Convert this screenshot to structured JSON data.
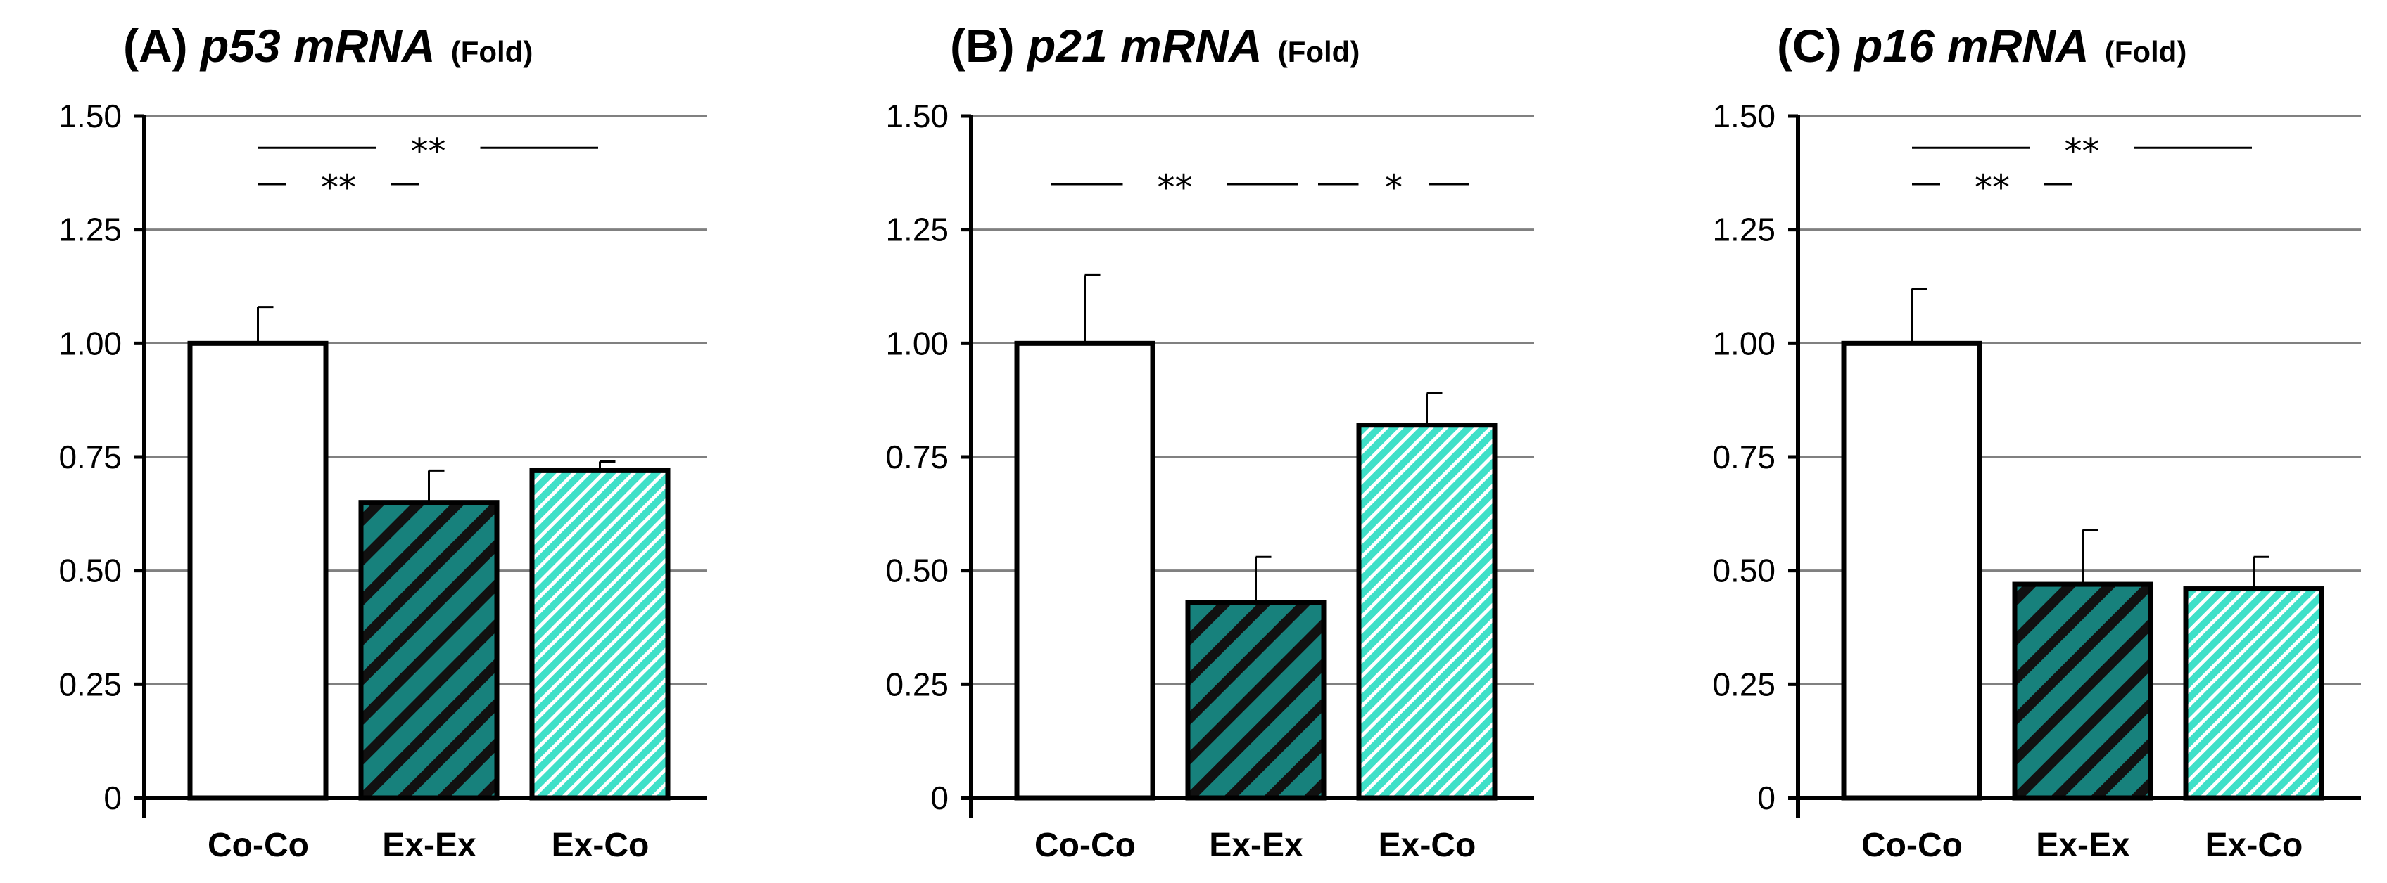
{
  "colors": {
    "co_co": "#ffffff",
    "ex_ex_base": "#17817c",
    "ex_ex_stripe": "#111111",
    "ex_co_base": "#3fe0c8",
    "ex_co_stripe": "#ffffff",
    "grid": "#808080",
    "axis": "#000000"
  },
  "chart_data": [
    {
      "type": "bar",
      "panel": "(A)",
      "gene": "p53 mRNA",
      "unit": "(Fold)",
      "categories": [
        "Co-Co",
        "Ex-Ex",
        "Ex-Co"
      ],
      "values": [
        1.0,
        0.65,
        0.72
      ],
      "errors": [
        0.08,
        0.07,
        0.02
      ],
      "ylim": [
        0,
        1.5
      ],
      "yticks": [
        0,
        0.25,
        0.5,
        0.75,
        1.0,
        1.25,
        1.5
      ],
      "ytick_labels": [
        "0",
        "0.25",
        "0.50",
        "0.75",
        "1.00",
        "1.25",
        "1.50"
      ],
      "grid": true,
      "significance": [
        {
          "from": 0,
          "to": 2,
          "label": "**",
          "level": 1.43
        },
        {
          "from": 0,
          "to": 1,
          "label": "**",
          "level": 1.35
        }
      ]
    },
    {
      "type": "bar",
      "panel": "(B)",
      "gene": "p21 mRNA",
      "unit": "(Fold)",
      "categories": [
        "Co-Co",
        "Ex-Ex",
        "Ex-Co"
      ],
      "values": [
        1.0,
        0.43,
        0.82
      ],
      "errors": [
        0.15,
        0.1,
        0.07
      ],
      "ylim": [
        0,
        1.5
      ],
      "yticks": [
        0,
        0.25,
        0.5,
        0.75,
        1.0,
        1.25,
        1.5
      ],
      "ytick_labels": [
        "0",
        "0.25",
        "0.50",
        "0.75",
        "1.00",
        "1.25",
        "1.50"
      ],
      "grid": true,
      "significance": [
        {
          "from": 0,
          "to": 1,
          "label": "**",
          "level": 1.35
        },
        {
          "from": 1,
          "to": 2,
          "label": "*",
          "level": 1.35
        }
      ]
    },
    {
      "type": "bar",
      "panel": "(C)",
      "gene": "p16 mRNA",
      "unit": "(Fold)",
      "categories": [
        "Co-Co",
        "Ex-Ex",
        "Ex-Co"
      ],
      "values": [
        1.0,
        0.47,
        0.46
      ],
      "errors": [
        0.12,
        0.12,
        0.07
      ],
      "ylim": [
        0,
        1.5
      ],
      "yticks": [
        0,
        0.25,
        0.5,
        0.75,
        1.0,
        1.25,
        1.5
      ],
      "ytick_labels": [
        "0",
        "0.25",
        "0.50",
        "0.75",
        "1.00",
        "1.25",
        "1.50"
      ],
      "grid": true,
      "significance": [
        {
          "from": 0,
          "to": 2,
          "label": "**",
          "level": 1.43
        },
        {
          "from": 0,
          "to": 1,
          "label": "**",
          "level": 1.35
        }
      ]
    }
  ]
}
